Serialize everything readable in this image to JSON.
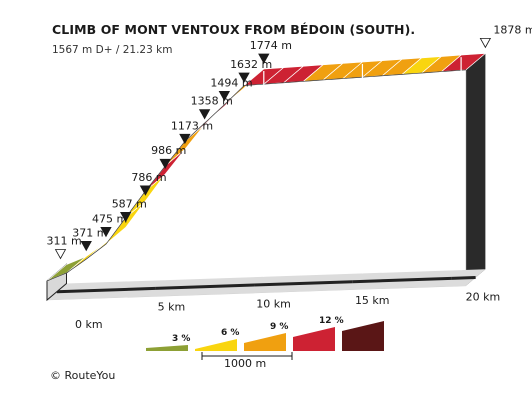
{
  "header": {
    "title": "CLIMB OF MONT VENTOUX FROM BÉDOIN (SOUTH).",
    "subtitle": "1567 m D+ / 21.23 km"
  },
  "footer": {
    "copyright": "©  RouteYou"
  },
  "colors": {
    "g3": "#8da035",
    "g6": "#f9d50f",
    "g9": "#f0a010",
    "g12": "#cd2233",
    "g15": "#5a1616",
    "wall": "#e7e2df",
    "base": "#dcdcdc"
  },
  "chart_data": {
    "type": "area",
    "title": "CLIMB OF MONT VENTOUX FROM BÉDOIN (SOUTH).",
    "subtitle": "1567 m D+ / 21.23 km",
    "x_unit": "km",
    "y_unit": "m",
    "profile": [
      {
        "km": 0.0,
        "elev": 311
      },
      {
        "km": 1.0,
        "elev": 371
      },
      {
        "km": 2.0,
        "elev": 475
      },
      {
        "km": 3.0,
        "elev": 587
      },
      {
        "km": 4.0,
        "elev": 786
      },
      {
        "km": 5.0,
        "elev": 986
      },
      {
        "km": 6.0,
        "elev": 1173
      },
      {
        "km": 7.0,
        "elev": 1358
      },
      {
        "km": 8.0,
        "elev": 1494
      },
      {
        "km": 9.0,
        "elev": 1632
      },
      {
        "km": 10.0,
        "elev": 1774
      },
      {
        "km": 21.23,
        "elev": 1878
      }
    ],
    "elevation_labels": [
      "311 m",
      "371 m",
      "475 m",
      "587 m",
      "786 m",
      "986 m",
      "1173 m",
      "1358 m",
      "1494 m",
      "1632 m",
      "1774 m",
      "1878 m"
    ],
    "km_ticks": [
      0,
      5,
      10,
      15,
      20
    ],
    "km_tick_labels": [
      "0 km",
      "5 km",
      "10 km",
      "15 km",
      "20 km"
    ],
    "segments": [
      {
        "from_km": 0.0,
        "to_km": 1.0,
        "grade_class": "3"
      },
      {
        "from_km": 1.0,
        "to_km": 2.0,
        "grade_class": "6"
      },
      {
        "from_km": 2.0,
        "to_km": 3.0,
        "grade_class": "6"
      },
      {
        "from_km": 3.0,
        "to_km": 4.0,
        "grade_class": "6"
      },
      {
        "from_km": 4.0,
        "to_km": 5.0,
        "grade_class": "6"
      },
      {
        "from_km": 5.0,
        "to_km": 6.0,
        "grade_class": "12"
      },
      {
        "from_km": 6.0,
        "to_km": 7.0,
        "grade_class": "9"
      },
      {
        "from_km": 7.0,
        "to_km": 8.0,
        "grade_class": "12"
      },
      {
        "from_km": 8.0,
        "to_km": 9.0,
        "grade_class": "12"
      },
      {
        "from_km": 9.0,
        "to_km": 10.0,
        "grade_class": "9"
      },
      {
        "from_km": 10.0,
        "to_km": 11.0,
        "grade_class": "12"
      },
      {
        "from_km": 11.0,
        "to_km": 12.0,
        "grade_class": "12"
      },
      {
        "from_km": 12.0,
        "to_km": 13.0,
        "grade_class": "12"
      },
      {
        "from_km": 13.0,
        "to_km": 14.0,
        "grade_class": "9"
      },
      {
        "from_km": 14.0,
        "to_km": 15.0,
        "grade_class": "9"
      },
      {
        "from_km": 15.0,
        "to_km": 16.0,
        "grade_class": "9"
      },
      {
        "from_km": 16.0,
        "to_km": 17.0,
        "grade_class": "9"
      },
      {
        "from_km": 17.0,
        "to_km": 18.0,
        "grade_class": "9"
      },
      {
        "from_km": 18.0,
        "to_km": 19.0,
        "grade_class": "6"
      },
      {
        "from_km": 19.0,
        "to_km": 20.0,
        "grade_class": "9"
      },
      {
        "from_km": 20.0,
        "to_km": 21.23,
        "grade_class": "12"
      }
    ],
    "legend": {
      "items": [
        {
          "label": "3 %",
          "color": "#8da035"
        },
        {
          "label": "6 %",
          "color": "#f9d50f"
        },
        {
          "label": "9 %",
          "color": "#f0a010"
        },
        {
          "label": "12 %",
          "color": "#cd2233"
        },
        {
          "label": "",
          "color": "#5a1616"
        }
      ],
      "scale_label": "1000 m"
    }
  }
}
